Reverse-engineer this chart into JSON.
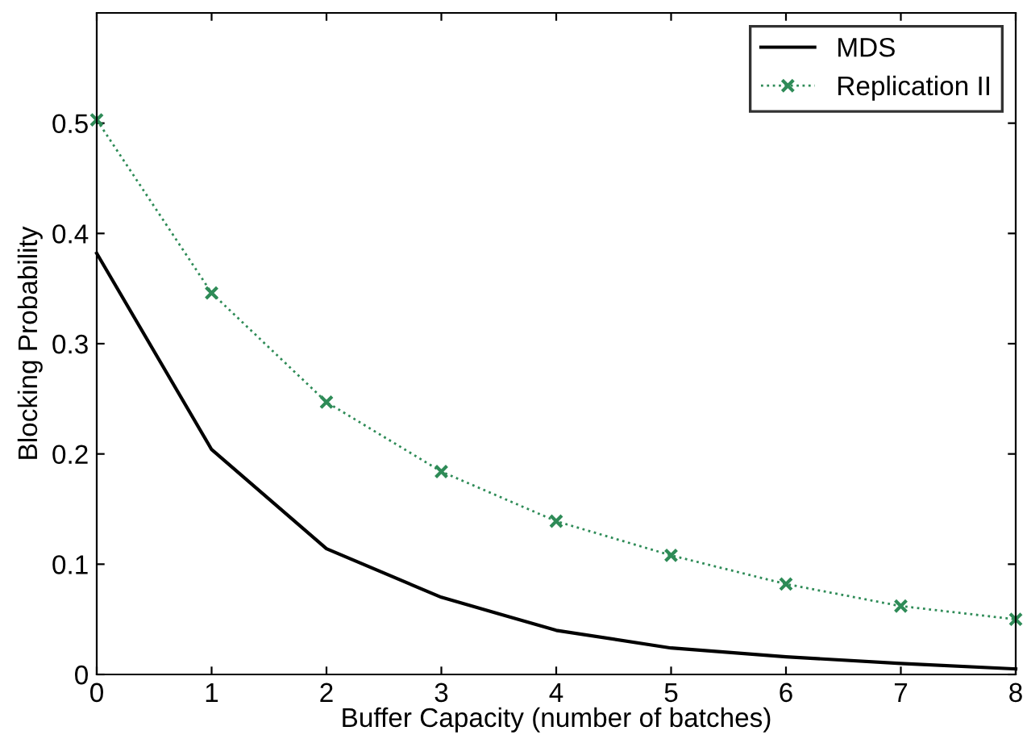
{
  "chart_data": {
    "type": "line",
    "xlabel": "Buffer Capacity (number of batches)",
    "ylabel": "Blocking Probability",
    "x": [
      0,
      1,
      2,
      3,
      4,
      5,
      6,
      7,
      8
    ],
    "series": [
      {
        "name": "MDS",
        "color": "#000000",
        "values": [
          0.382,
          0.204,
          0.114,
          0.07,
          0.04,
          0.024,
          0.016,
          0.01,
          0.005
        ],
        "marker": "none",
        "line_style": "solid"
      },
      {
        "name": "Replication II",
        "color": "#2e8b57",
        "values": [
          0.503,
          0.346,
          0.247,
          0.184,
          0.139,
          0.108,
          0.082,
          0.062,
          0.05
        ],
        "marker": "cross",
        "line_style": "dotted"
      }
    ],
    "xlim": [
      0,
      8
    ],
    "xticks": [
      0,
      1,
      2,
      3,
      4,
      5,
      6,
      7,
      8
    ],
    "ylim": [
      0,
      0.6
    ],
    "yticks": [
      0,
      0.1,
      0.2,
      0.3,
      0.4,
      0.5
    ],
    "grid": false,
    "legend": "top right"
  }
}
